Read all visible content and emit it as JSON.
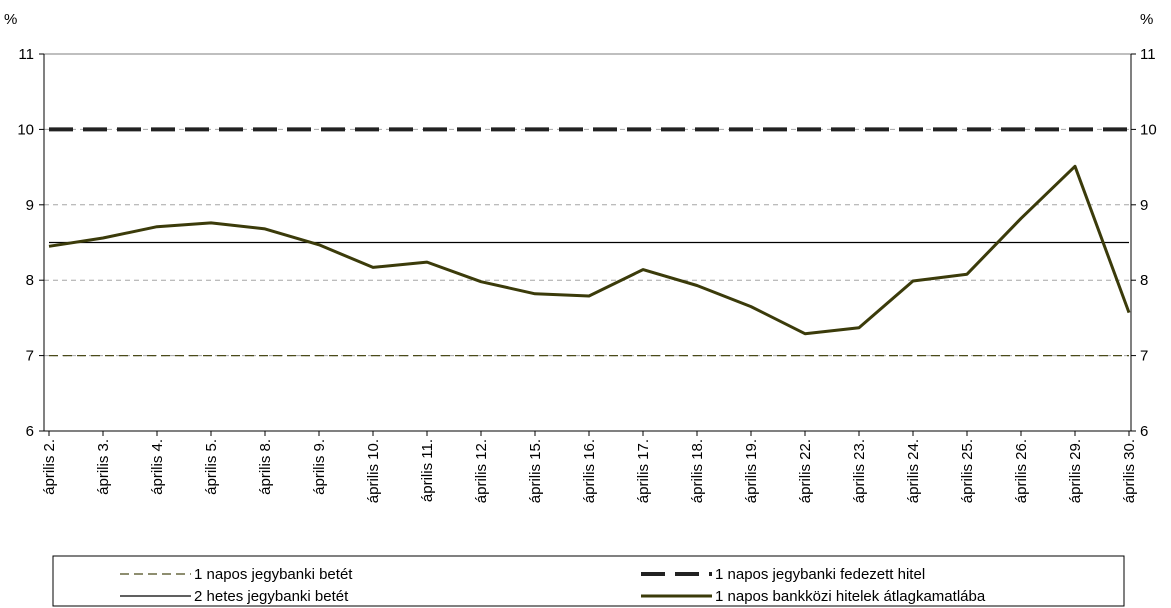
{
  "chart_data": {
    "type": "line",
    "unit_left": "%",
    "unit_right": "%",
    "categories": [
      "április 2.",
      "április 3.",
      "április 4.",
      "április 5.",
      "április 8.",
      "április 9.",
      "április 10.",
      "április 11.",
      "április 12.",
      "április 15.",
      "április 16.",
      "április 17.",
      "április 18.",
      "április 19.",
      "április 22.",
      "április 23.",
      "április 24.",
      "április 25.",
      "április 26.",
      "április 29.",
      "április 30."
    ],
    "ylim": [
      6,
      11
    ],
    "yticks": [
      6,
      7,
      8,
      9,
      10,
      11
    ],
    "grid": true,
    "legend_position": "bottom",
    "series": [
      {
        "name": "1 napos jegybanki betét",
        "style": "dashed-thin",
        "color": "#4a4a1a",
        "values": [
          7,
          7,
          7,
          7,
          7,
          7,
          7,
          7,
          7,
          7,
          7,
          7,
          7,
          7,
          7,
          7,
          7,
          7,
          7,
          7,
          7
        ]
      },
      {
        "name": "1 napos jegybanki fedezett hitel",
        "style": "dashed-thick",
        "color": "#222222",
        "values": [
          10,
          10,
          10,
          10,
          10,
          10,
          10,
          10,
          10,
          10,
          10,
          10,
          10,
          10,
          10,
          10,
          10,
          10,
          10,
          10,
          10
        ]
      },
      {
        "name": "2 hetes jegybanki betét",
        "style": "solid-thin",
        "color": "#000000",
        "values": [
          8.5,
          8.5,
          8.5,
          8.5,
          8.5,
          8.5,
          8.5,
          8.5,
          8.5,
          8.5,
          8.5,
          8.5,
          8.5,
          8.5,
          8.5,
          8.5,
          8.5,
          8.5,
          8.5,
          8.5,
          8.5
        ]
      },
      {
        "name": "1 napos bankközi hitelek átlagkamatlába",
        "style": "solid-thick",
        "color": "#3b3b0a",
        "values": [
          8.45,
          8.56,
          8.71,
          8.76,
          8.68,
          8.47,
          8.17,
          8.24,
          7.98,
          7.82,
          7.79,
          8.14,
          7.93,
          7.65,
          7.29,
          7.37,
          7.99,
          8.08,
          8.82,
          9.51,
          7.57
        ]
      }
    ]
  }
}
